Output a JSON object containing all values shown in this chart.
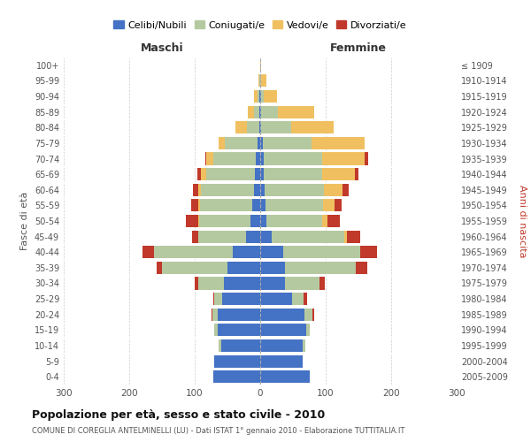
{
  "age_groups": [
    "0-4",
    "5-9",
    "10-14",
    "15-19",
    "20-24",
    "25-29",
    "30-34",
    "35-39",
    "40-44",
    "45-49",
    "50-54",
    "55-59",
    "60-64",
    "65-69",
    "70-74",
    "75-79",
    "80-84",
    "85-89",
    "90-94",
    "95-99",
    "100+"
  ],
  "birth_years": [
    "2005-2009",
    "2000-2004",
    "1995-1999",
    "1990-1994",
    "1985-1989",
    "1980-1984",
    "1975-1979",
    "1970-1974",
    "1965-1969",
    "1960-1964",
    "1955-1959",
    "1950-1954",
    "1945-1949",
    "1940-1944",
    "1935-1939",
    "1930-1934",
    "1925-1929",
    "1920-1924",
    "1915-1919",
    "1910-1914",
    "≤ 1909"
  ],
  "colors": {
    "celibi": "#4472c4",
    "coniugati": "#b5c9a0",
    "vedovi": "#f0c060",
    "divorziati": "#c0392b"
  },
  "maschi": {
    "celibi": [
      72,
      70,
      60,
      65,
      65,
      58,
      55,
      50,
      42,
      22,
      15,
      12,
      10,
      8,
      7,
      4,
      2,
      1,
      1,
      0,
      0
    ],
    "coniugati": [
      0,
      0,
      3,
      5,
      8,
      12,
      40,
      100,
      120,
      72,
      78,
      80,
      80,
      75,
      65,
      50,
      18,
      8,
      3,
      1,
      0
    ],
    "vedovi": [
      0,
      0,
      0,
      0,
      0,
      0,
      0,
      0,
      0,
      0,
      2,
      3,
      5,
      8,
      10,
      10,
      18,
      10,
      5,
      2,
      0
    ],
    "divorziati": [
      0,
      0,
      0,
      0,
      2,
      2,
      5,
      8,
      18,
      10,
      18,
      10,
      8,
      5,
      2,
      0,
      0,
      0,
      0,
      0,
      0
    ]
  },
  "femmine": {
    "celibi": [
      75,
      65,
      65,
      70,
      68,
      48,
      38,
      38,
      35,
      18,
      10,
      8,
      7,
      5,
      5,
      4,
      2,
      2,
      1,
      0,
      0
    ],
    "coniugati": [
      0,
      0,
      4,
      6,
      12,
      18,
      52,
      108,
      118,
      110,
      85,
      88,
      90,
      90,
      90,
      75,
      45,
      25,
      5,
      2,
      0
    ],
    "vedovi": [
      0,
      0,
      0,
      0,
      0,
      0,
      0,
      0,
      0,
      5,
      8,
      18,
      28,
      50,
      65,
      80,
      65,
      55,
      20,
      8,
      2
    ],
    "divorziati": [
      0,
      0,
      0,
      0,
      3,
      5,
      8,
      18,
      25,
      20,
      18,
      10,
      10,
      5,
      5,
      0,
      0,
      0,
      0,
      0,
      0
    ]
  },
  "title": "Popolazione per età, sesso e stato civile - 2010",
  "subtitle": "COMUNE DI COREGLIA ANTELMINELLI (LU) - Dati ISTAT 1° gennaio 2010 - Elaborazione TUTTITALIA.IT",
  "xlabel_left": "Maschi",
  "xlabel_right": "Femmine",
  "ylabel_left": "Fasce di età",
  "ylabel_right": "Anni di nascita",
  "xlim": 300,
  "bg_color": "#ffffff",
  "grid_color": "#cccccc",
  "legend_labels": [
    "Celibi/Nubili",
    "Coniugati/e",
    "Vedovi/e",
    "Divorziati/e"
  ]
}
